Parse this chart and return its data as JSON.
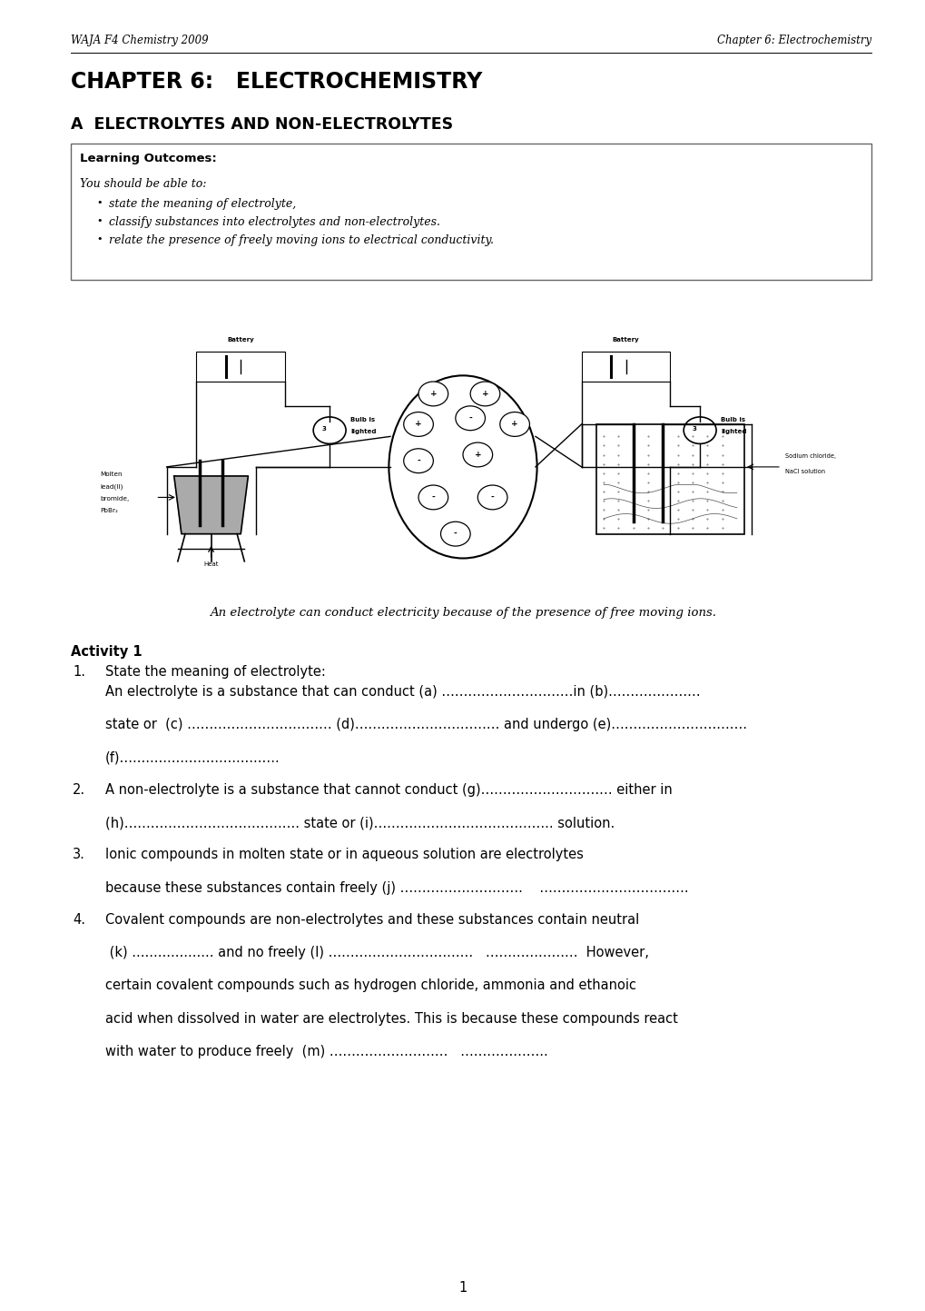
{
  "header_left": "WAJA F4 Chemistry 2009",
  "header_right": "Chapter 6: Electrochemistry",
  "chapter_title": "CHAPTER 6:   ELECTROCHEMISTRY",
  "section_title": "A  ELECTROLYTES AND NON-ELECTROLYTES",
  "learning_outcomes_title": "Learning Outcomes:",
  "learning_outcomes_intro": "You should be able to:",
  "learning_outcomes_bullets": [
    "state the meaning of electrolyte,",
    "classify substances into electrolytes and non-electrolytes.",
    "relate the presence of freely moving ions to electrical conductivity."
  ],
  "diagram_caption": "An electrolyte can conduct electricity because of the presence of free moving ions.",
  "activity_title": "Activity 1",
  "activity_items": [
    {
      "num": "1.",
      "indent": "   ",
      "lines": [
        "State the meaning of electrolyte:",
        "An electrolyte is a substance that can conduct (a) …………………………in (b)…………………",
        "",
        "state or  (c) …………………………… (d)…………………………… and undergo (e)………………………….",
        "",
        "(f)…..............................…."
      ]
    },
    {
      "num": "2.",
      "indent": "   ",
      "lines": [
        "A non-electrolyte is a substance that cannot conduct (g)………………………… either in",
        "",
        "(h)…………………………………. state or (i)………………………………….. solution."
      ]
    },
    {
      "num": "3.",
      "indent": "   ",
      "lines": [
        "Ionic compounds in molten state or in aqueous solution are electrolytes",
        "",
        "because these substances contain freely (j) ……………………….    ……………………………."
      ]
    },
    {
      "num": "4.",
      "indent": "   ",
      "lines": [
        "Covalent compounds are non-electrolytes and these substances contain neutral",
        "",
        " (k) ................... and no freely (l) ……………………………   …………………  However,",
        "",
        "certain covalent compounds such as hydrogen chloride, ammonia and ethanoic",
        "",
        "acid when dissolved in water are electrolytes. This is because these compounds react",
        "",
        "with water to produce freely  (m) ………………………   ……………….."
      ]
    }
  ],
  "page_number": "1",
  "bg_color": "#ffffff",
  "text_color": "#000000"
}
